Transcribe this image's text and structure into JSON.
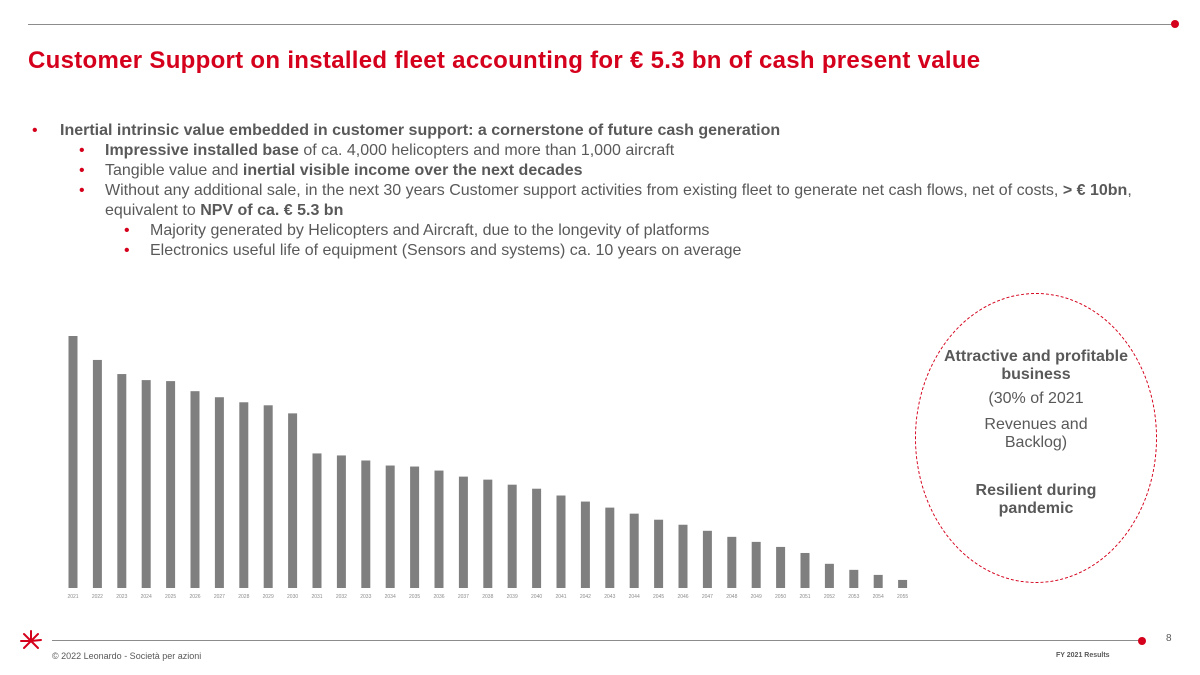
{
  "header": {
    "title": "Customer Support on installed fleet accounting for € 5.3 bn of cash present value"
  },
  "bullets": {
    "b1": "Inertial intrinsic value embedded in customer support: a cornerstone of future cash generation",
    "b2_bold": "Impressive installed base",
    "b2_rest": " of ca. 4,000 helicopters and more than 1,000 aircraft",
    "b3_pre": "Tangible value and ",
    "b3_bold": "inertial visible income over the next decades",
    "b4_pre": "Without any additional sale, in the next 30 years Customer support activities from existing fleet to generate net cash flows, net of costs, ",
    "b4_bold1": "> € 10bn",
    "b4_mid": ", equivalent to ",
    "b4_bold2": "NPV of ca. € 5.3 bn",
    "b5": "Majority generated by Helicopters and Aircraft, due to the longevity of platforms",
    "b6": "Electronics useful life of equipment (Sensors and systems) ca. 10 years on average"
  },
  "callout": {
    "line1": "Attractive and profitable business",
    "line2": "(30% of 2021",
    "line3": "Revenues and Backlog)",
    "line4": "Resilient during pandemic"
  },
  "footer": {
    "page_number": "8",
    "copyright": "© 2022 Leonardo - Società per azioni",
    "report": "FY 2021 Results"
  },
  "colors": {
    "accent": "#d5001c",
    "bar": "#7f7f7f",
    "text": "#595959"
  },
  "chart_data": {
    "type": "bar",
    "title": "",
    "xlabel": "",
    "ylabel": "",
    "ylim": [
      0,
      100
    ],
    "grid": false,
    "categories": [
      "2021",
      "2022",
      "2023",
      "2024",
      "2025",
      "2026",
      "2027",
      "2028",
      "2029",
      "2030",
      "2031",
      "2032",
      "2033",
      "2034",
      "2035",
      "2036",
      "2037",
      "2038",
      "2039",
      "2040",
      "2041",
      "2042",
      "2043",
      "2044",
      "2045",
      "2046",
      "2047",
      "2048",
      "2049",
      "2050",
      "2051",
      "2052",
      "2053",
      "2054",
      "2055"
    ],
    "values": [
      100,
      90.5,
      84.9,
      82.5,
      82.1,
      78.1,
      75.7,
      73.7,
      72.5,
      69.3,
      53.4,
      52.6,
      50.6,
      48.6,
      48.2,
      46.6,
      44.2,
      43.0,
      41.0,
      39.4,
      36.7,
      34.3,
      31.9,
      29.5,
      27.1,
      25.1,
      22.7,
      20.3,
      18.3,
      16.3,
      13.9,
      9.6,
      7.2,
      5.2,
      3.2
    ]
  }
}
